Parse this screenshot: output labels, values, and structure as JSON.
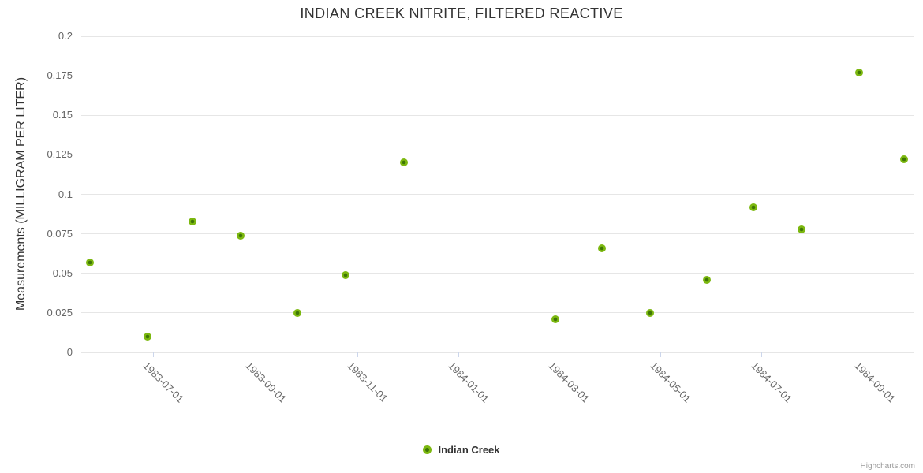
{
  "title": {
    "text": "INDIAN CREEK NITRITE, FILTERED REACTIVE"
  },
  "credits": {
    "label": "Highcharts.com"
  },
  "legend": {
    "position": "bottom-center",
    "items": [
      {
        "label": "Indian Creek",
        "marker_icon": "circle",
        "marker_color": "#7cb810",
        "marker_core_color": "#3e7605"
      }
    ]
  },
  "colors": {
    "background": "#ffffff",
    "title_text": "#333333",
    "axis_title_text": "#333333",
    "tick_label_text": "#666666",
    "gridline": "#e6e6e6",
    "axis_line": "#ccd6eb",
    "point_fill": "#7cb810",
    "point_core": "#3e7605",
    "credits_text": "#999999"
  },
  "chart_data": {
    "type": "scatter",
    "title": "INDIAN CREEK NITRITE, FILTERED REACTIVE",
    "xlabel": "",
    "ylabel": "Measurements (MILLIGRAM PER LITER)",
    "ylim": [
      0,
      0.2
    ],
    "grid": true,
    "legend_position": "bottom-center",
    "x_range": [
      "1983-05-19",
      "1984-10-01"
    ],
    "y_ticks": [
      {
        "value": 0,
        "label": "0"
      },
      {
        "value": 0.025,
        "label": "0.025"
      },
      {
        "value": 0.05,
        "label": "0.05"
      },
      {
        "value": 0.075,
        "label": "0.075"
      },
      {
        "value": 0.1,
        "label": "0.1"
      },
      {
        "value": 0.125,
        "label": "0.125"
      },
      {
        "value": 0.15,
        "label": "0.15"
      },
      {
        "value": 0.175,
        "label": "0.175"
      },
      {
        "value": 0.2,
        "label": "0.2"
      }
    ],
    "x_ticks": [
      {
        "date": "1983-07-01",
        "label": "1983-07-01"
      },
      {
        "date": "1983-09-01",
        "label": "1983-09-01"
      },
      {
        "date": "1983-11-01",
        "label": "1983-11-01"
      },
      {
        "date": "1984-01-01",
        "label": "1984-01-01"
      },
      {
        "date": "1984-03-01",
        "label": "1984-03-01"
      },
      {
        "date": "1984-05-01",
        "label": "1984-05-01"
      },
      {
        "date": "1984-07-01",
        "label": "1984-07-01"
      },
      {
        "date": "1984-09-01",
        "label": "1984-09-01"
      }
    ],
    "series": [
      {
        "name": "Indian Creek",
        "color": "#7cb810",
        "points": [
          {
            "x": "1983-05-24",
            "y": 0.057
          },
          {
            "x": "1983-06-28",
            "y": 0.01
          },
          {
            "x": "1983-07-25",
            "y": 0.083
          },
          {
            "x": "1983-08-23",
            "y": 0.074
          },
          {
            "x": "1983-09-26",
            "y": 0.025
          },
          {
            "x": "1983-10-25",
            "y": 0.049
          },
          {
            "x": "1983-11-29",
            "y": 0.12
          },
          {
            "x": "1984-02-28",
            "y": 0.021
          },
          {
            "x": "1984-03-27",
            "y": 0.066
          },
          {
            "x": "1984-04-25",
            "y": 0.025
          },
          {
            "x": "1984-05-29",
            "y": 0.046
          },
          {
            "x": "1984-06-26",
            "y": 0.092
          },
          {
            "x": "1984-07-25",
            "y": 0.078
          },
          {
            "x": "1984-08-29",
            "y": 0.177
          },
          {
            "x": "1984-09-25",
            "y": 0.122
          }
        ]
      }
    ]
  }
}
